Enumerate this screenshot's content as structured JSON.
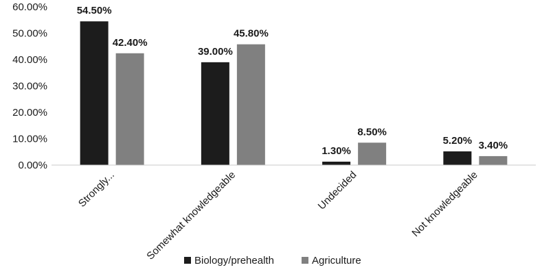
{
  "chart_data": {
    "type": "bar",
    "categories": [
      "Strongly...",
      "Somewhat knowledgeable",
      "Undecided",
      "Not knowledgeable"
    ],
    "series": [
      {
        "name": "Biology/prehealth",
        "color": "#1c1c1c",
        "values": [
          54.5,
          39.0,
          1.3,
          5.2
        ],
        "labels": [
          "54.50%",
          "39.00%",
          "1.30%",
          "5.20%"
        ]
      },
      {
        "name": "Agriculture",
        "color": "#808080",
        "values": [
          42.4,
          45.8,
          8.5,
          3.4
        ],
        "labels": [
          "42.40%",
          "45.80%",
          "8.50%",
          "3.40%"
        ]
      }
    ],
    "ylim": [
      0,
      60
    ],
    "yticks": [
      "0.00%",
      "10.00%",
      "20.00%",
      "30.00%",
      "40.00%",
      "50.00%",
      "60.00%"
    ],
    "title": "",
    "xlabel": "",
    "ylabel": "",
    "grid": false,
    "legend_position": "bottom"
  }
}
